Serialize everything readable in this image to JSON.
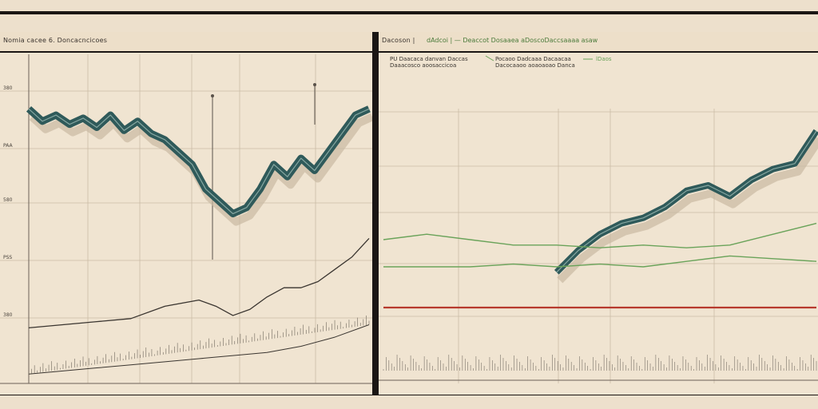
{
  "colors": {
    "background": "#ede0cc",
    "panel": "#f0e4d1",
    "frame": "#1a1614",
    "teal_series": "#2f5a5a",
    "green_series": "#6aa35a",
    "red_series": "#b73a2e",
    "dark_series": "#3a3530"
  },
  "panels": {
    "left": {
      "title": "Nomia cacee 6. Doncacncicoes"
    },
    "right": {
      "title": "Dacoson |",
      "subtitle": "dAdcoi | — Deaccot Dosaaea aDoscoDaccsaaaa asaw"
    }
  },
  "chart_data": [
    {
      "type": "line",
      "title": "Nomia cacee 6. Doncacncicoes",
      "yticks": [
        "380",
        "PAA",
        "580",
        "PSS",
        "380"
      ],
      "grid": true,
      "series": [
        {
          "color": "#2f5a5a",
          "x": [
            0,
            4,
            8,
            12,
            16,
            20,
            24,
            28,
            32,
            36,
            40,
            44,
            48,
            52,
            56,
            60,
            64,
            68,
            72,
            76,
            80,
            84,
            88,
            92,
            96,
            100
          ],
          "values": [
            88,
            84,
            86,
            83,
            85,
            82,
            86,
            81,
            84,
            80,
            78,
            74,
            70,
            62,
            58,
            54,
            56,
            62,
            70,
            66,
            72,
            68,
            74,
            80,
            86,
            88
          ]
        },
        {
          "color": "#3a3530",
          "x": [
            0,
            10,
            20,
            30,
            40,
            50,
            55,
            60,
            65,
            70,
            75,
            80,
            85,
            90,
            95,
            100
          ],
          "values": [
            17,
            18,
            19,
            20,
            24,
            26,
            24,
            21,
            23,
            27,
            30,
            30,
            32,
            36,
            40,
            46
          ]
        },
        {
          "color": "#3a3530",
          "x": [
            0,
            10,
            20,
            30,
            40,
            50,
            60,
            70,
            80,
            90,
            100
          ],
          "values": [
            2,
            3,
            4,
            5,
            6,
            7,
            8,
            9,
            11,
            14,
            18
          ]
        }
      ]
    },
    {
      "type": "line",
      "title": "Dacoson |",
      "legend": [
        {
          "text": "PU Daacaca danvan Daccas",
          "color": "#3a3530"
        },
        {
          "text": "Daaacosco aoosaccicoa",
          "color": "#3a3530"
        },
        {
          "text": "Pocaoo Dadcaaa Dacaacaa",
          "color": "#3a3530"
        },
        {
          "text": "Dacocaaoo aoaoaoao Danca",
          "color": "#3a3530"
        },
        {
          "text": "lDaos",
          "color": "#6aa35a"
        }
      ],
      "grid": true,
      "series": [
        {
          "color": "#2f5a5a",
          "x": [
            40,
            45,
            50,
            55,
            60,
            65,
            70,
            75,
            80,
            85,
            90,
            95,
            100
          ],
          "values": [
            38,
            46,
            52,
            56,
            58,
            62,
            68,
            70,
            66,
            72,
            76,
            78,
            90
          ]
        },
        {
          "color": "#6aa35a",
          "x": [
            0,
            10,
            20,
            30,
            40,
            50,
            60,
            70,
            80,
            90,
            100
          ],
          "values": [
            50,
            52,
            50,
            48,
            48,
            47,
            48,
            47,
            48,
            52,
            56
          ]
        },
        {
          "color": "#6aa35a",
          "x": [
            0,
            10,
            20,
            30,
            40,
            50,
            60,
            70,
            80,
            90,
            100
          ],
          "values": [
            40,
            40,
            40,
            41,
            40,
            41,
            40,
            42,
            44,
            43,
            42
          ]
        },
        {
          "color": "#b73a2e",
          "x": [
            0,
            25,
            50,
            75,
            100
          ],
          "values": [
            25,
            25,
            25,
            25,
            25
          ]
        }
      ]
    }
  ]
}
